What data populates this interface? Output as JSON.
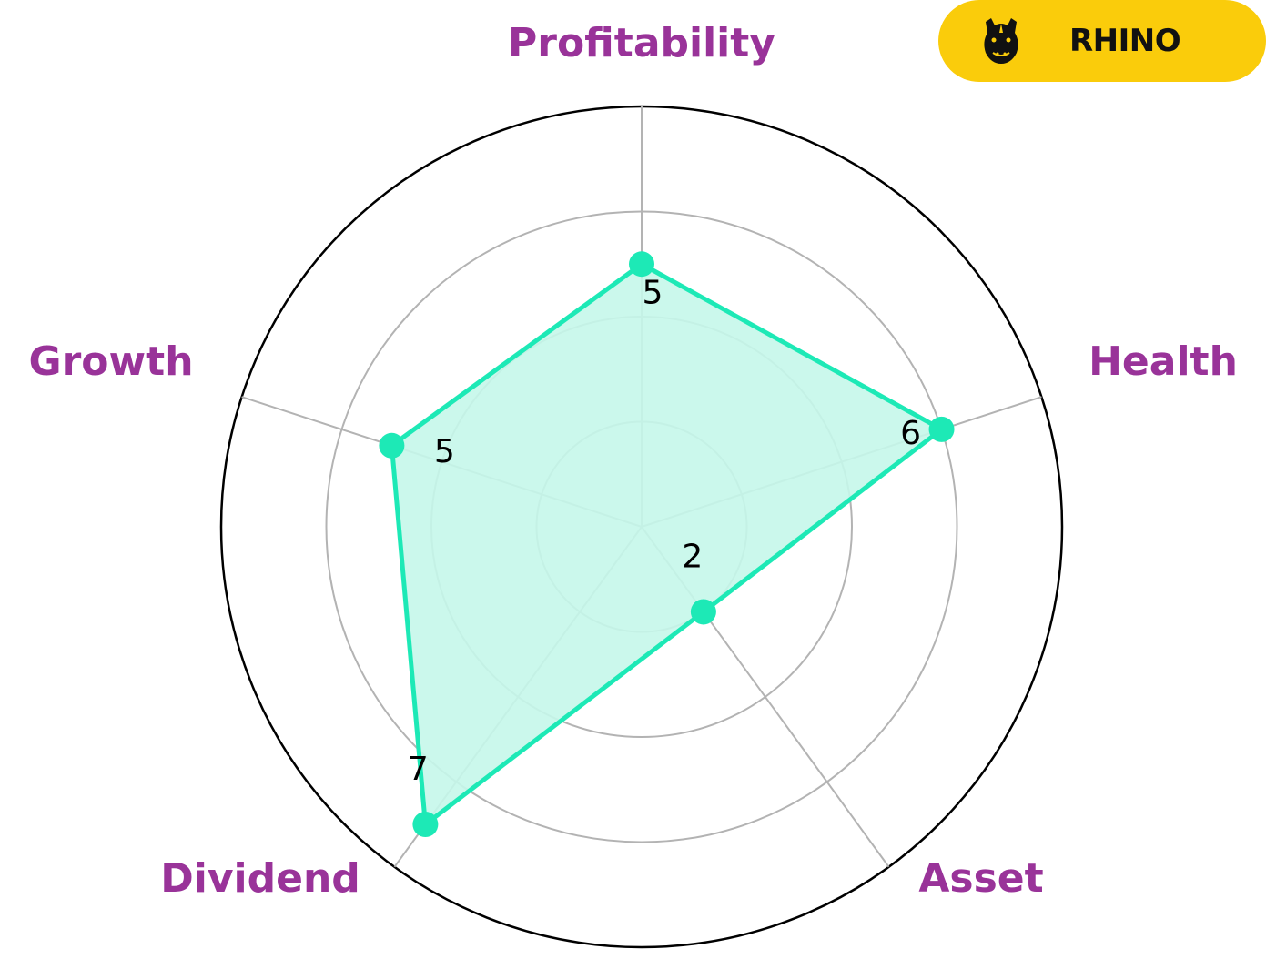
{
  "brand": {
    "name": "RHINO",
    "logo_icon": "rhino-head-icon",
    "badge_color": "#FACC0B"
  },
  "colors": {
    "series": "#1DE9B6",
    "series_fill": "#C5F7EA",
    "label": "#993399",
    "grid": "#B3B3B3",
    "frame": "#000000"
  },
  "chart_data": {
    "type": "radar",
    "categories": [
      "Profitability",
      "Health",
      "Asset",
      "Dividend",
      "Growth"
    ],
    "series": [
      {
        "values": [
          5,
          6,
          2,
          7,
          5
        ]
      }
    ],
    "rlim": [
      0,
      8
    ],
    "rings": [
      2,
      4,
      6,
      8
    ],
    "data_labels": [
      "5",
      "6",
      "2",
      "7",
      "5"
    ],
    "grid": true
  }
}
